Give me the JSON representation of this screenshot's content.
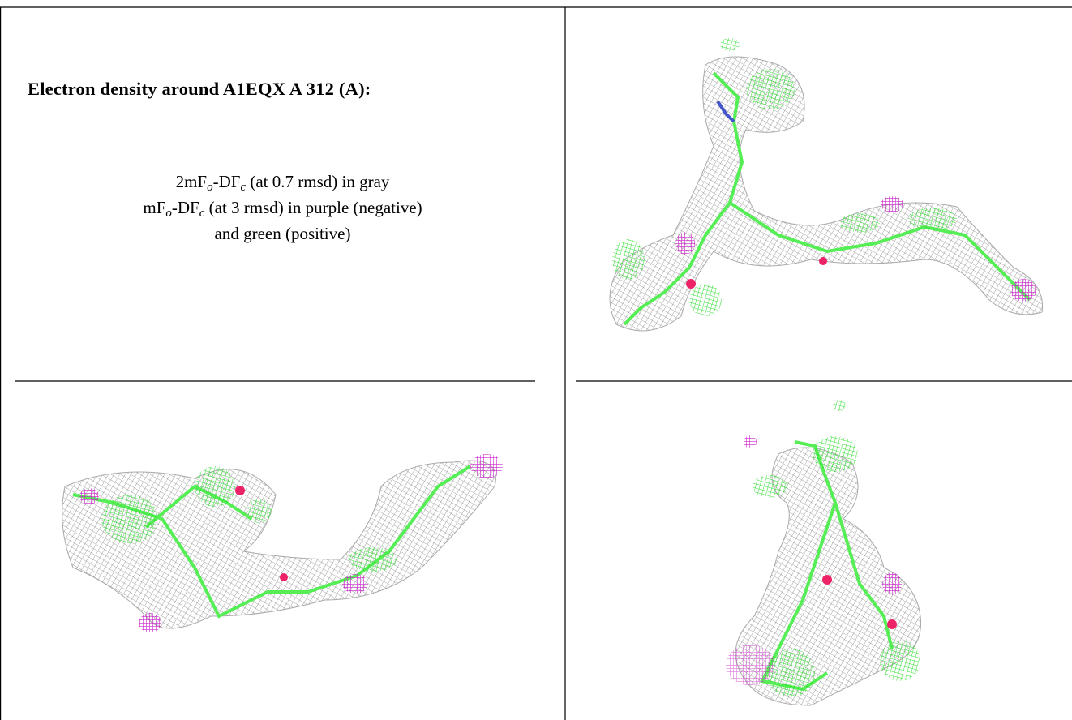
{
  "title": "Electron density around A1EQX A 312 (A):",
  "legend": {
    "lines": [
      [
        "2mF",
        "o",
        "-DF",
        "c",
        " (at 0.7 rmsd) in gray"
      ],
      [
        "mF",
        "o",
        "-DF",
        "c",
        " (at 3 rmsd) in purple (negative)"
      ],
      [
        "and green (positive)"
      ]
    ]
  }
}
